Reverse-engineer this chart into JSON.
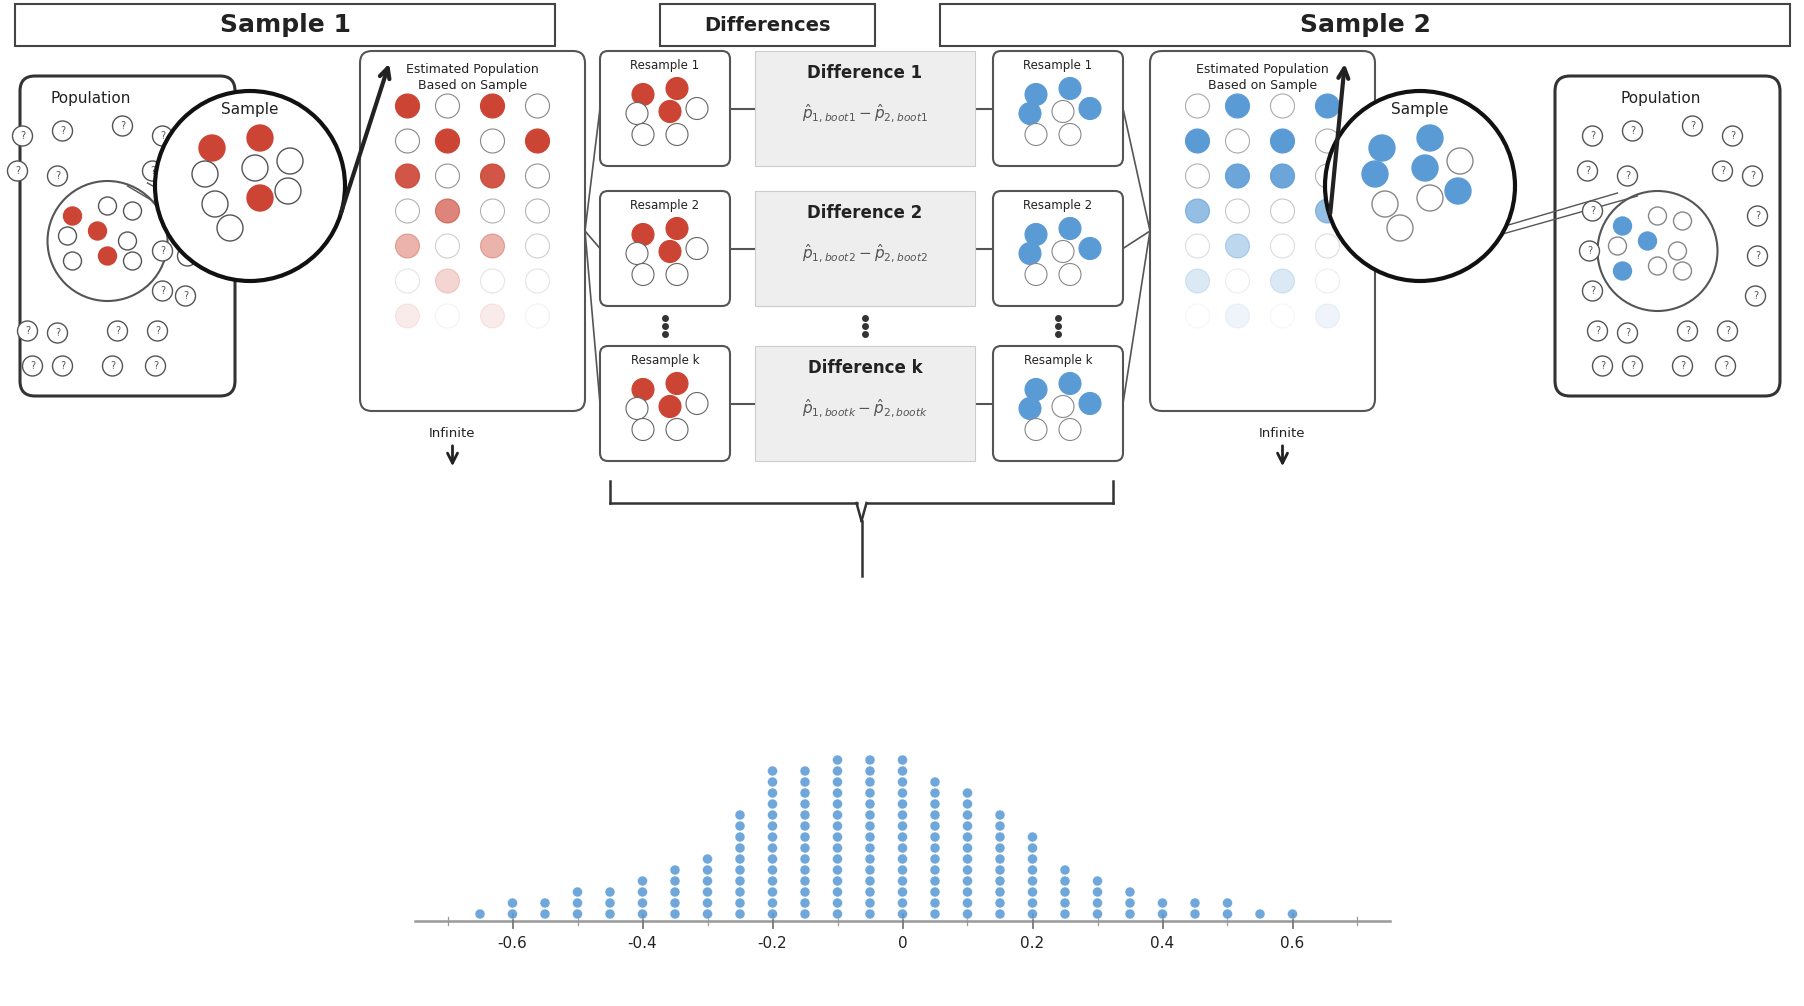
{
  "dot_counts": {
    "-0.65": 1,
    "-0.6": 2,
    "-0.55": 2,
    "-0.5": 3,
    "-0.45": 3,
    "-0.4": 4,
    "-0.35": 5,
    "-0.3": 6,
    "-0.25": 10,
    "-0.2": 14,
    "-0.15": 14,
    "-0.1": 15,
    "-0.05": 15,
    "0.0": 15,
    "0.05": 13,
    "0.1": 12,
    "0.15": 10,
    "0.2": 8,
    "0.25": 5,
    "0.3": 4,
    "0.35": 3,
    "0.4": 2,
    "0.45": 2,
    "0.5": 2,
    "0.55": 1,
    "0.6": 1
  },
  "dot_color": "#5B9BD5",
  "axis_color": "#888888",
  "background_color": "#ffffff",
  "tick_labels": [
    "-0.6",
    "-0.4",
    "-0.2",
    "0",
    "0.2",
    "0.4",
    "0.6"
  ],
  "tick_values": [
    -0.6,
    -0.4,
    -0.2,
    0.0,
    0.2,
    0.4,
    0.6
  ],
  "header_sample1": "Sample 1",
  "header_differences": "Differences",
  "header_sample2": "Sample 2",
  "resample_labels_left": [
    "Resample 1",
    "Resample 2",
    "Resample k"
  ],
  "resample_labels_right": [
    "Resample 1",
    "Resample 2",
    "Resample k"
  ],
  "difference_labels": [
    "Difference 1",
    "Difference 2",
    "Difference k"
  ],
  "diff_eq1": "$\\hat{p}_{1,boot1} - \\hat{p}_{2,boot1}$",
  "diff_eq2": "$\\hat{p}_{1,boot2} - \\hat{p}_{2,boot2}$",
  "diff_eqk": "$\\hat{p}_{1,bootk} - \\hat{p}_{2,bootk}$",
  "pop_label": "Population",
  "sample_label": "Sample",
  "est_pop_label_top": "Estimated Population",
  "est_pop_label_bot": "Based on Sample",
  "infinite_label": "Infinite",
  "text_color": "#222222",
  "red_color": "#CC4433",
  "blue_color": "#5B9BD5"
}
